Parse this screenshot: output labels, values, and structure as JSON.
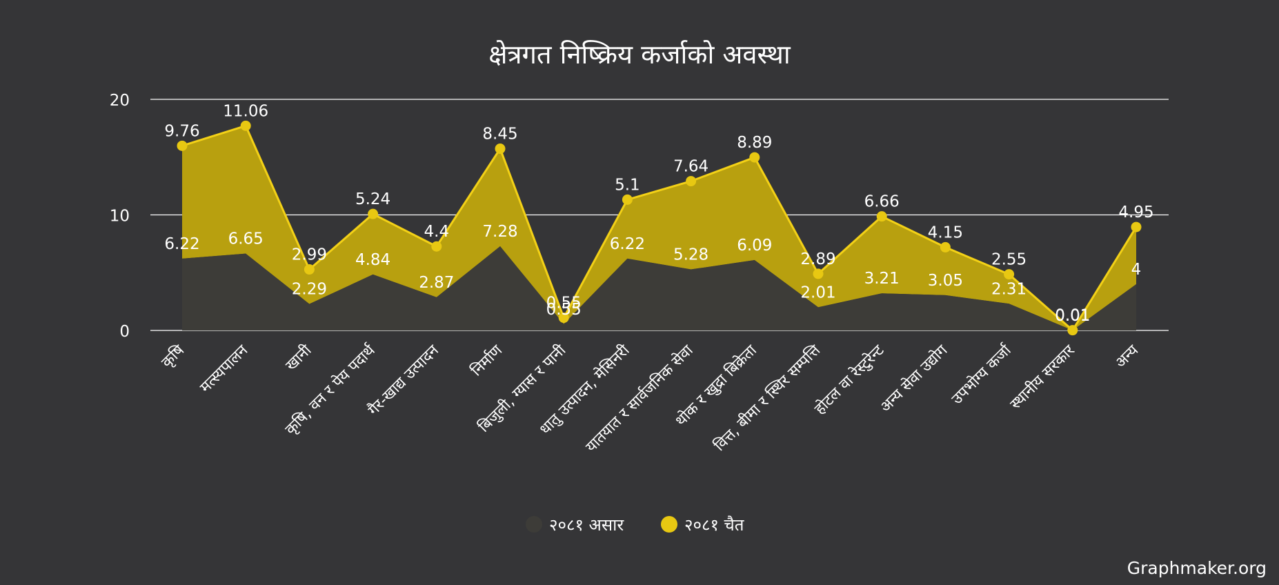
{
  "credit": "Graphmaker.org",
  "colors": {
    "background": "#353537",
    "gridline": "#ffffff",
    "text": "#ffffff",
    "series1_fill": "#3d3c38",
    "series1_marker": "#3d3c38",
    "series2_fill": "#b8a00f",
    "series2_line": "#f3d117",
    "series2_marker": "#e8c812"
  },
  "chart_data": {
    "type": "area",
    "title": "क्षेत्रगत निष्क्रिय कर्जाको अवस्था",
    "xlabel": "",
    "ylabel": "",
    "ylim": [
      0,
      20
    ],
    "yticks": [
      0,
      10,
      20
    ],
    "grid": true,
    "stacked": true,
    "legend_position": "bottom",
    "categories": [
      "कृषि",
      "मत्स्यपालन",
      "खानी",
      "कृषि, वन र पेय पदार्थ",
      "गैर-खाद्य उत्पादन",
      "निर्माण",
      "बिजुली, ग्यास र पानी",
      "धातु उत्पादन, मेसिनरी",
      "यातयात र सार्वजनिक सेवा",
      "थोक र खुद्रा बिक्रेता",
      "वित्त, बीमा र स्थिर सम्पत्ति",
      "होटल वा रेस्टुरेन्ट",
      "अन्य सेवा उद्योग",
      "उपभोग्य कर्जा",
      "स्थानीय सरकार",
      "अन्य"
    ],
    "series": [
      {
        "name": "२०८१ असार",
        "values": [
          6.22,
          6.65,
          2.29,
          4.84,
          2.87,
          7.28,
          0.55,
          6.22,
          5.28,
          6.09,
          2.01,
          3.21,
          3.05,
          2.31,
          0.01,
          4
        ]
      },
      {
        "name": "२०८१ चैत",
        "values": [
          9.76,
          11.06,
          2.99,
          5.24,
          4.4,
          8.45,
          0.55,
          5.1,
          7.64,
          8.89,
          2.89,
          6.66,
          4.15,
          2.55,
          0.01,
          4.95
        ]
      }
    ]
  }
}
